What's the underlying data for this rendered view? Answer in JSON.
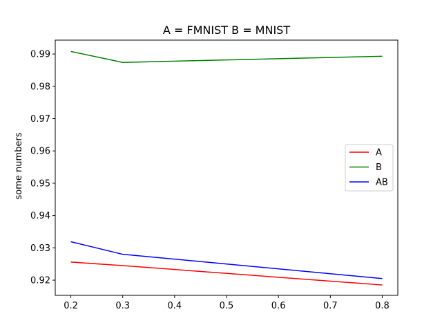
{
  "chart_data": {
    "type": "line",
    "title": "A = FMNIST B = MNIST",
    "xlabel": "",
    "ylabel": "some numbers",
    "x": [
      0.2,
      0.3,
      0.8
    ],
    "xlim": [
      0.17,
      0.83
    ],
    "ylim": [
      0.9153,
      0.9943
    ],
    "xticks": [
      0.2,
      0.3,
      0.4,
      0.5,
      0.6,
      0.7,
      0.8
    ],
    "yticks": [
      0.92,
      0.93,
      0.94,
      0.95,
      0.96,
      0.97,
      0.98,
      0.99
    ],
    "xtick_labels": [
      "0.2",
      "0.3",
      "0.4",
      "0.5",
      "0.6",
      "0.7",
      "0.8"
    ],
    "ytick_labels": [
      "0.92",
      "0.93",
      "0.94",
      "0.95",
      "0.96",
      "0.97",
      "0.98",
      "0.99"
    ],
    "grid": false,
    "legend": "center-right",
    "series": [
      {
        "name": "A",
        "color": "#ff0000",
        "values": [
          0.9256,
          0.9245,
          0.9185
        ]
      },
      {
        "name": "B",
        "color": "#008000",
        "values": [
          0.9908,
          0.9874,
          0.9893
        ]
      },
      {
        "name": "AB",
        "color": "#0000ff",
        "values": [
          0.9319,
          0.928,
          0.9205
        ]
      }
    ]
  }
}
